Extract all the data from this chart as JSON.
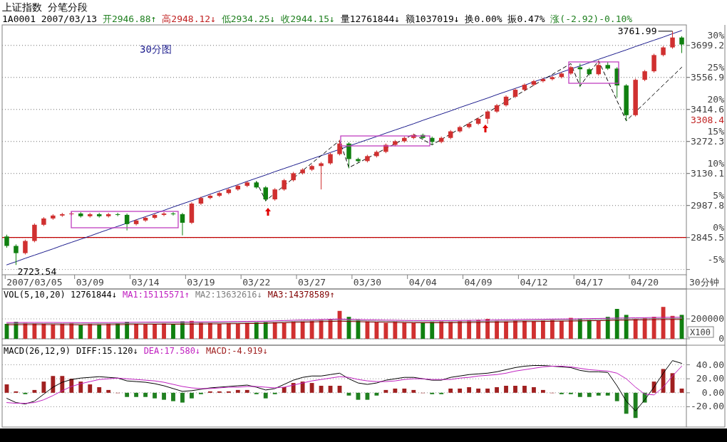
{
  "chart_data": [
    {
      "type": "candlestick",
      "title": "上证指数 分笔分段",
      "subtitle": "1A0001 2007/03/13 开2946.88↑ 高2948.12↓ 低2934.25↓ 收2944.15↓ 量12761844↓ 额1037019↓ 换0.00% 振0.47% 涨(-2.92)-0.10%",
      "xlabel": "30分钟",
      "categories": [
        null,
        null,
        null,
        "2007/03/05",
        null,
        null,
        null,
        null,
        null,
        "03/09",
        null,
        null,
        null,
        null,
        null,
        "03/14",
        null,
        null,
        null,
        null,
        null,
        "03/19",
        null,
        null,
        null,
        null,
        null,
        "03/22",
        null,
        null,
        null,
        null,
        null,
        "03/27",
        null,
        null,
        null,
        null,
        null,
        "03/30",
        null,
        null,
        null,
        null,
        null,
        "04/04",
        null,
        null,
        null,
        null,
        null,
        "04/09",
        null,
        null,
        null,
        null,
        null,
        "04/12",
        null,
        null,
        null,
        null,
        null,
        "04/17",
        null,
        null,
        null,
        null,
        null,
        "04/20",
        null,
        null,
        null,
        null
      ],
      "ylim": [
        2680,
        3790
      ],
      "yticks": [
        2845.5,
        2987.8,
        3130.1,
        3272.3,
        3414.6,
        3556.9,
        3699.2
      ],
      "y2lim": [
        -5.82,
        33.19
      ],
      "y2ticks": [
        {
          "value": -5,
          "label": "-5%"
        },
        {
          "value": 0,
          "label": "0%"
        },
        {
          "value": 5,
          "label": "5%"
        },
        {
          "value": 10,
          "label": "10%"
        },
        {
          "value": 15,
          "label": "15%"
        },
        {
          "value": 20,
          "label": "20%"
        },
        {
          "value": 25,
          "label": "25%"
        },
        {
          "value": 30,
          "label": "30%"
        }
      ],
      "grid": "y",
      "ref_lines": [
        {
          "axis": "y",
          "value": 2845.5,
          "color": "#c00000"
        }
      ],
      "annotations": [
        "30分图",
        "2723.54",
        "3761.99",
        "3308.4"
      ],
      "series": [
        {
          "ohlc": [
            [
              2850,
              2858,
              2800,
              2808
            ],
            [
              2808,
              2815,
              2723.54,
              2776
            ],
            [
              2776,
              2836,
              2770,
              2830
            ],
            [
              2830,
              2908,
              2824,
              2902
            ],
            [
              2902,
              2936,
              2896,
              2930
            ],
            [
              2930,
              2949,
              2924,
              2943
            ],
            [
              2943,
              2955,
              2937,
              2949
            ],
            [
              2949,
              2960,
              2943,
              2952
            ],
            [
              2952,
              2958,
              2934,
              2940
            ],
            [
              2940,
              2955,
              2934,
              2949
            ],
            [
              2949,
              2955,
              2934,
              2940
            ],
            [
              2940,
              2955,
              2934,
              2949
            ],
            [
              2949,
              2955,
              2940,
              2946
            ],
            [
              2946,
              2952,
              2877,
              2905
            ],
            [
              2905,
              2927,
              2899,
              2921
            ],
            [
              2921,
              2939,
              2915,
              2933
            ],
            [
              2933,
              2952,
              2927,
              2946
            ],
            [
              2946,
              2958,
              2940,
              2952
            ],
            [
              2952,
              2958,
              2943,
              2949
            ],
            [
              2949,
              2955,
              2855,
              2911
            ],
            [
              2911,
              3002,
              2905,
              2996
            ],
            [
              2996,
              3027,
              2990,
              3021
            ],
            [
              3021,
              3037,
              3015,
              3031
            ],
            [
              3031,
              3049,
              3025,
              3043
            ],
            [
              3043,
              3065,
              3037,
              3059
            ],
            [
              3059,
              3081,
              3053,
              3075
            ],
            [
              3075,
              3096,
              3069,
              3090
            ],
            [
              3090,
              3096,
              3062,
              3068
            ],
            [
              3068,
              3074,
              3006,
              3015
            ],
            [
              3015,
              3065,
              3009,
              3059
            ],
            [
              3059,
              3106,
              3053,
              3100
            ],
            [
              3100,
              3137,
              3094,
              3131
            ],
            [
              3131,
              3153,
              3125,
              3147
            ],
            [
              3147,
              3169,
              3141,
              3163
            ],
            [
              3163,
              3181,
              3059,
              3175
            ],
            [
              3175,
              3222,
              3169,
              3216
            ],
            [
              3216,
              3279,
              3210,
              3263
            ],
            [
              3263,
              3269,
              3153,
              3194
            ],
            [
              3194,
              3200,
              3179,
              3185
            ],
            [
              3185,
              3213,
              3179,
              3207
            ],
            [
              3207,
              3232,
              3201,
              3226
            ],
            [
              3226,
              3263,
              3220,
              3257
            ],
            [
              3257,
              3279,
              3251,
              3273
            ],
            [
              3273,
              3294,
              3267,
              3288
            ],
            [
              3288,
              3307,
              3282,
              3301
            ],
            [
              3301,
              3307,
              3282,
              3288
            ],
            [
              3288,
              3294,
              3257,
              3270
            ],
            [
              3270,
              3294,
              3264,
              3288
            ],
            [
              3288,
              3323,
              3282,
              3317
            ],
            [
              3317,
              3342,
              3311,
              3336
            ],
            [
              3336,
              3357,
              3330,
              3351
            ],
            [
              3351,
              3379,
              3345,
              3373
            ],
            [
              3373,
              3411,
              3351,
              3405
            ],
            [
              3405,
              3439,
              3399,
              3433
            ],
            [
              3433,
              3477,
              3427,
              3471
            ],
            [
              3471,
              3508,
              3465,
              3502
            ],
            [
              3502,
              3530,
              3496,
              3524
            ],
            [
              3524,
              3546,
              3518,
              3540
            ],
            [
              3540,
              3555,
              3534,
              3549
            ],
            [
              3549,
              3564,
              3543,
              3558
            ],
            [
              3558,
              3580,
              3552,
              3574
            ],
            [
              3574,
              3608,
              3568,
              3602
            ],
            [
              3602,
              3618,
              3514,
              3593
            ],
            [
              3593,
              3599,
              3565,
              3571
            ],
            [
              3571,
              3631,
              3565,
              3612
            ],
            [
              3612,
              3625,
              3590,
              3596
            ],
            [
              3596,
              3602,
              3467,
              3521
            ],
            [
              3521,
              3527,
              3364,
              3389
            ],
            [
              3389,
              3552,
              3383,
              3546
            ],
            [
              3546,
              3590,
              3540,
              3584
            ],
            [
              3584,
              3662,
              3578,
              3656
            ],
            [
              3656,
              3696,
              3650,
              3690
            ],
            [
              3690,
              3761.99,
              3684,
              3734
            ],
            [
              3734,
              3740,
              3665,
              3703
            ]
          ],
          "colors": [
            "#108010",
            "#108010",
            "#d03030",
            "#d03030",
            "#d03030",
            "#d03030",
            "#d03030",
            "#d03030",
            "#108010",
            "#d03030",
            "#108010",
            "#d03030",
            "#108010",
            "#108010",
            "#d03030",
            "#d03030",
            "#d03030",
            "#d03030",
            "#108010",
            "#108010",
            "#d03030",
            "#d03030",
            "#d03030",
            "#d03030",
            "#d03030",
            "#d03030",
            "#d03030",
            "#108010",
            "#108010",
            "#d03030",
            "#d03030",
            "#d03030",
            "#d03030",
            "#d03030",
            "#d03030",
            "#d03030",
            "#d03030",
            "#108010",
            "#108010",
            "#d03030",
            "#d03030",
            "#d03030",
            "#d03030",
            "#d03030",
            "#d03030",
            "#108010",
            "#108010",
            "#d03030",
            "#d03030",
            "#d03030",
            "#d03030",
            "#d03030",
            "#d03030",
            "#d03030",
            "#d03030",
            "#d03030",
            "#d03030",
            "#d03030",
            "#d03030",
            "#d03030",
            "#d03030",
            "#d03030",
            "#108010",
            "#108010",
            "#d03030",
            "#108010",
            "#108010",
            "#108010",
            "#d03030",
            "#d03030",
            "#d03030",
            "#d03030",
            "#d03030",
            "#108010"
          ]
        },
        {
          "type": "line",
          "color": "#1a1a8c",
          "values": [
            2724,
            2738,
            2753,
            2767,
            2781,
            2795,
            2810,
            2824,
            2838,
            2852,
            2867,
            2881,
            2895,
            2909,
            2924,
            2938,
            2952,
            2966,
            2981,
            2995,
            3009,
            3023,
            3038,
            3052,
            3066,
            3080,
            3095,
            3109,
            3123,
            3138,
            3152,
            3166,
            3180,
            3195,
            3209,
            3223,
            3237,
            3252,
            3266,
            3280,
            3294,
            3309,
            3323,
            3337,
            3351,
            3366,
            3380,
            3394,
            3408,
            3423,
            3437,
            3451,
            3465,
            3480,
            3494,
            3508,
            3522,
            3537,
            3551,
            3565,
            3580,
            3594,
            3608,
            3622,
            3637,
            3651,
            3665,
            3679,
            3694,
            3708,
            3722,
            3736,
            3751,
            3765
          ]
        },
        {
          "type": "line",
          "color": "#000000",
          "line_style": "dashed",
          "values": [
            null,
            null,
            null,
            null,
            null,
            null,
            null,
            null,
            null,
            null,
            null,
            null,
            null,
            null,
            null,
            null,
            null,
            null,
            null,
            null,
            null,
            null,
            null,
            null,
            null,
            null,
            null,
            3094,
            3009,
            3042,
            3076,
            3109,
            3143,
            3176,
            3209,
            3243,
            3276,
            3156,
            3177,
            3198,
            3219,
            3241,
            3262,
            3283,
            3304,
            3281,
            3257,
            3281,
            3305,
            3329,
            3353,
            3377,
            3401,
            3425,
            3450,
            3474,
            3498,
            3522,
            3546,
            3570,
            3594,
            3618,
            3518,
            3575,
            3631,
            3542,
            3453,
            3364,
            3404,
            3443,
            3483,
            3523,
            3562,
            3602
          ]
        }
      ]
    },
    {
      "type": "bar",
      "title": "VOL(5,10,20) 12761844↓",
      "ylabel": "X100",
      "tick_labels": "y",
      "categories": [
        null,
        null,
        null,
        null,
        null,
        null,
        null,
        null,
        null,
        null,
        null,
        null,
        null,
        null,
        null,
        null,
        null,
        null,
        null,
        null,
        null,
        null,
        null,
        null,
        null,
        null,
        null,
        null,
        null,
        null,
        null,
        null,
        null,
        null,
        null,
        null,
        null,
        null,
        null,
        null,
        null,
        null,
        null,
        null,
        null,
        null,
        null,
        null,
        null,
        null,
        null,
        null,
        null,
        null,
        null,
        null,
        null,
        null,
        null,
        null,
        null,
        null,
        null,
        null,
        null,
        null,
        null,
        null,
        null,
        null,
        null,
        null,
        null,
        null
      ],
      "ylim": [
        0,
        500000
      ],
      "yticks": [
        0,
        200000
      ],
      "grid": "y",
      "series": [
        {
          "values": [
            150000,
            170000,
            160000,
            155000,
            150000,
            145000,
            150000,
            160000,
            140000,
            150000,
            145000,
            150000,
            155000,
            170000,
            150000,
            145000,
            150000,
            155000,
            150000,
            175000,
            180000,
            165000,
            160000,
            150000,
            155000,
            150000,
            160000,
            165000,
            170000,
            165000,
            160000,
            170000,
            175000,
            180000,
            190000,
            200000,
            280000,
            220000,
            190000,
            175000,
            165000,
            160000,
            170000,
            165000,
            160000,
            165000,
            170000,
            175000,
            170000,
            180000,
            185000,
            190000,
            200000,
            180000,
            175000,
            185000,
            180000,
            175000,
            185000,
            190000,
            180000,
            210000,
            200000,
            190000,
            185000,
            220000,
            300000,
            240000,
            200000,
            210000,
            220000,
            320000,
            230000,
            240000
          ],
          "colors": [
            "#108010",
            "#108010",
            "#d03030",
            "#d03030",
            "#d03030",
            "#d03030",
            "#d03030",
            "#d03030",
            "#108010",
            "#d03030",
            "#108010",
            "#d03030",
            "#108010",
            "#108010",
            "#d03030",
            "#d03030",
            "#d03030",
            "#d03030",
            "#108010",
            "#108010",
            "#d03030",
            "#d03030",
            "#d03030",
            "#d03030",
            "#d03030",
            "#d03030",
            "#d03030",
            "#108010",
            "#108010",
            "#d03030",
            "#d03030",
            "#d03030",
            "#d03030",
            "#d03030",
            "#d03030",
            "#d03030",
            "#d03030",
            "#108010",
            "#108010",
            "#d03030",
            "#d03030",
            "#d03030",
            "#d03030",
            "#d03030",
            "#d03030",
            "#108010",
            "#108010",
            "#d03030",
            "#d03030",
            "#d03030",
            "#d03030",
            "#d03030",
            "#d03030",
            "#d03030",
            "#d03030",
            "#d03030",
            "#d03030",
            "#d03030",
            "#d03030",
            "#d03030",
            "#d03030",
            "#d03030",
            "#108010",
            "#108010",
            "#d03030",
            "#108010",
            "#108010",
            "#108010",
            "#d03030",
            "#d03030",
            "#d03030",
            "#d03030",
            "#d03030",
            "#108010"
          ]
        },
        {
          "type": "line",
          "name": "MA1:15115571↑",
          "color": "#c020c0",
          "values": [
            163000,
            163000,
            164000,
            164000,
            164000,
            164000,
            163000,
            163000,
            162000,
            162000,
            163000,
            163000,
            164000,
            165000,
            166000,
            167000,
            168000,
            168000,
            168000,
            169000,
            169000,
            170000,
            171000,
            172000,
            173000,
            174000,
            175000,
            176000,
            177000,
            180000,
            183000,
            186000,
            189000,
            191000,
            194000,
            196000,
            199000,
            196000,
            194000,
            191000,
            189000,
            187000,
            186000,
            184000,
            183000,
            183000,
            183000,
            183000,
            183000,
            184000,
            185000,
            186000,
            187000,
            189000,
            190000,
            192000,
            194000,
            195000,
            196000,
            198000,
            199000,
            200000,
            201000,
            203000,
            204000,
            206000,
            208000,
            209000,
            211000,
            212000,
            214000,
            215000,
            216000,
            216000
          ]
        },
        {
          "type": "line",
          "name": "MA2:13632616↓",
          "color": "#808080",
          "values": [
            152000,
            152000,
            153000,
            153000,
            153000,
            153000,
            152000,
            152000,
            151000,
            151000,
            152000,
            152000,
            153000,
            154000,
            155000,
            156000,
            157000,
            157000,
            157000,
            158000,
            158000,
            159000,
            160000,
            161000,
            162000,
            163000,
            164000,
            165000,
            166000,
            169000,
            172000,
            175000,
            178000,
            180000,
            183000,
            185000,
            188000,
            185000,
            183000,
            180000,
            178000,
            176000,
            175000,
            173000,
            172000,
            172000,
            172000,
            172000,
            172000,
            173000,
            174000,
            175000,
            176000,
            178000,
            179000,
            181000,
            183000,
            184000,
            185000,
            187000,
            188000,
            189000,
            190000,
            192000,
            193000,
            195000,
            197000,
            198000,
            200000,
            201000,
            203000,
            204000,
            205000,
            205000
          ]
        },
        {
          "type": "line",
          "name": "MA3:14378589↑",
          "color": "#800000",
          "values": [
            141000,
            141000,
            142000,
            142000,
            142000,
            142000,
            141000,
            141000,
            140000,
            140000,
            141000,
            141000,
            142000,
            143000,
            144000,
            145000,
            146000,
            146000,
            146000,
            147000,
            147000,
            148000,
            149000,
            150000,
            151000,
            152000,
            153000,
            154000,
            155000,
            158000,
            161000,
            164000,
            167000,
            169000,
            172000,
            174000,
            177000,
            174000,
            172000,
            169000,
            167000,
            165000,
            164000,
            162000,
            161000,
            161000,
            161000,
            161000,
            161000,
            162000,
            163000,
            164000,
            165000,
            167000,
            168000,
            170000,
            172000,
            173000,
            174000,
            176000,
            177000,
            178000,
            179000,
            181000,
            182000,
            184000,
            186000,
            187000,
            189000,
            190000,
            192000,
            193000,
            194000,
            194000
          ]
        }
      ]
    },
    {
      "type": "bar",
      "title": "MACD(26,12,9)",
      "tick_labels": "y",
      "categories": [
        null,
        null,
        null,
        null,
        null,
        null,
        null,
        null,
        null,
        null,
        null,
        null,
        null,
        null,
        null,
        null,
        null,
        null,
        null,
        null,
        null,
        null,
        null,
        null,
        null,
        null,
        null,
        null,
        null,
        null,
        null,
        null,
        null,
        null,
        null,
        null,
        null,
        null,
        null,
        null,
        null,
        null,
        null,
        null,
        null,
        null,
        null,
        null,
        null,
        null,
        null,
        null,
        null,
        null,
        null,
        null,
        null,
        null,
        null,
        null,
        null,
        null,
        null,
        null,
        null,
        null,
        null,
        null,
        null,
        null,
        null,
        null,
        null,
        null
      ],
      "ylim": [
        -49,
        68
      ],
      "yticks": [
        {
          "value": 40,
          "label": "40.00"
        },
        {
          "value": 20,
          "label": "20.00"
        },
        {
          "value": 0,
          "label": "0.00"
        },
        {
          "value": -20,
          "label": "-20.00"
        }
      ],
      "grid": "y",
      "series": [
        {
          "type": "line",
          "name": "DIFF:15.120↓",
          "color": "#000000",
          "values": [
            -8,
            -14,
            -16,
            -12,
            -2,
            8,
            15,
            19,
            21,
            22,
            23,
            22,
            21,
            17,
            16,
            15,
            13,
            10,
            6,
            2,
            3,
            5,
            7,
            8,
            9,
            10,
            11,
            8,
            4,
            6,
            12,
            18,
            22,
            24,
            24,
            26,
            28,
            20,
            14,
            12,
            14,
            18,
            20,
            22,
            22,
            20,
            18,
            18,
            22,
            24,
            26,
            27,
            28,
            30,
            33,
            36,
            38,
            39,
            39,
            38,
            37,
            36,
            32,
            30,
            30,
            29,
            10,
            -12,
            -26,
            -10,
            8,
            28,
            46,
            42
          ]
        },
        {
          "type": "line",
          "name": "DEA:17.580↓",
          "color": "#c020c0",
          "values": [
            -14,
            -15,
            -15,
            -14,
            -10,
            -4,
            3,
            9,
            13,
            16,
            19,
            20,
            21,
            20,
            19,
            18,
            17,
            15,
            12,
            9,
            7,
            6,
            6,
            7,
            8,
            8,
            9,
            9,
            8,
            7,
            8,
            11,
            14,
            17,
            19,
            21,
            23,
            22,
            19,
            17,
            16,
            16,
            17,
            19,
            20,
            20,
            19,
            19,
            19,
            21,
            22,
            24,
            25,
            26,
            28,
            31,
            33,
            35,
            37,
            38,
            38,
            37,
            35,
            33,
            32,
            31,
            28,
            20,
            8,
            -2,
            -3,
            8,
            24,
            38
          ]
        },
        {
          "name": "MACD:-4.919↓",
          "values": [
            12,
            2,
            -2,
            4,
            16,
            24,
            24,
            20,
            16,
            12,
            8,
            4,
            0,
            -6,
            -6,
            -6,
            -8,
            -10,
            -12,
            -14,
            -8,
            -2,
            2,
            2,
            2,
            4,
            4,
            -2,
            -8,
            -2,
            8,
            14,
            16,
            14,
            10,
            10,
            10,
            -4,
            -10,
            -10,
            -4,
            4,
            6,
            6,
            4,
            0,
            -2,
            -2,
            6,
            6,
            8,
            6,
            6,
            8,
            10,
            10,
            10,
            8,
            4,
            0,
            -2,
            -2,
            -6,
            -6,
            -4,
            -4,
            -12,
            -30,
            -36,
            -14,
            16,
            34,
            28,
            6
          ],
          "colors": [
            "#a02020",
            "#a02020",
            "#208020",
            "#a02020",
            "#a02020",
            "#a02020",
            "#a02020",
            "#a02020",
            "#a02020",
            "#a02020",
            "#a02020",
            "#a02020",
            "#a02020",
            "#208020",
            "#208020",
            "#208020",
            "#208020",
            "#208020",
            "#208020",
            "#208020",
            "#208020",
            "#208020",
            "#a02020",
            "#a02020",
            "#a02020",
            "#a02020",
            "#a02020",
            "#208020",
            "#208020",
            "#208020",
            "#a02020",
            "#a02020",
            "#a02020",
            "#a02020",
            "#a02020",
            "#a02020",
            "#a02020",
            "#208020",
            "#208020",
            "#208020",
            "#208020",
            "#a02020",
            "#a02020",
            "#a02020",
            "#a02020",
            "#a02020",
            "#208020",
            "#208020",
            "#a02020",
            "#a02020",
            "#a02020",
            "#a02020",
            "#a02020",
            "#a02020",
            "#a02020",
            "#a02020",
            "#a02020",
            "#a02020",
            "#a02020",
            "#a02020",
            "#208020",
            "#208020",
            "#208020",
            "#208020",
            "#208020",
            "#208020",
            "#208020",
            "#208020",
            "#208020",
            "#208020",
            "#a02020",
            "#a02020",
            "#a02020",
            "#a02020"
          ]
        }
      ]
    }
  ]
}
